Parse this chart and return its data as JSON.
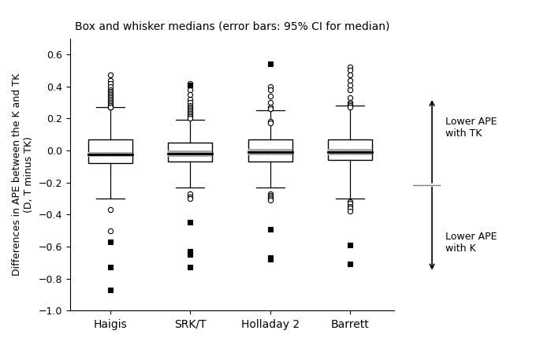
{
  "title": "Box and whisker medians (error bars: 95% CI for median)",
  "ylabel": "Differences in APE between the K and TK\n(D, T minus TK)",
  "xlabel_labels": [
    "Haigis",
    "SRK/T",
    "Holladay 2",
    "Barrett"
  ],
  "ylim": [
    -1.0,
    0.7
  ],
  "yticks": [
    -1.0,
    -0.8,
    -0.6,
    -0.4,
    -0.2,
    0.0,
    0.2,
    0.4,
    0.6
  ],
  "annotation_upper": "Lower APE\nwith TK",
  "annotation_lower": "Lower APE\nwith K",
  "box_data": {
    "Haigis": {
      "median": -0.025,
      "q1": -0.08,
      "q3": 0.07,
      "whisker_low": -0.3,
      "whisker_high": 0.27,
      "ci_low": -0.04,
      "ci_high": -0.01,
      "outliers_circle": [
        0.47,
        0.44,
        0.42,
        0.4,
        0.38,
        0.37,
        0.36,
        0.35,
        0.34,
        0.33,
        0.32,
        0.31,
        0.3,
        0.29,
        0.28,
        0.27,
        0.27,
        -0.37,
        -0.5
      ],
      "outliers_square": [
        -0.57,
        -0.73,
        -0.87
      ]
    },
    "SRK/T": {
      "median": -0.02,
      "q1": -0.07,
      "q3": 0.05,
      "whisker_low": -0.23,
      "whisker_high": 0.19,
      "ci_low": -0.04,
      "ci_high": 0.0,
      "outliers_circle": [
        0.42,
        0.38,
        0.35,
        0.32,
        0.3,
        0.28,
        0.27,
        0.26,
        0.25,
        0.24,
        0.23,
        0.22,
        0.21,
        0.2,
        -0.27,
        -0.29,
        -0.3
      ],
      "outliers_square": [
        0.41,
        -0.45,
        -0.63,
        -0.65,
        -0.73
      ]
    },
    "Holladay 2": {
      "median": -0.01,
      "q1": -0.07,
      "q3": 0.07,
      "whisker_low": -0.23,
      "whisker_high": 0.25,
      "ci_low": -0.03,
      "ci_high": 0.01,
      "outliers_circle": [
        0.4,
        0.38,
        0.34,
        0.3,
        0.27,
        0.26,
        0.18,
        0.17,
        -0.27,
        -0.28,
        -0.29,
        -0.3,
        -0.31
      ],
      "outliers_square": [
        0.54,
        -0.49,
        -0.67,
        -0.68
      ]
    },
    "Barrett": {
      "median": -0.01,
      "q1": -0.06,
      "q3": 0.07,
      "whisker_low": -0.3,
      "whisker_high": 0.28,
      "ci_low": -0.03,
      "ci_high": 0.01,
      "outliers_circle": [
        0.52,
        0.5,
        0.47,
        0.44,
        0.41,
        0.38,
        0.33,
        0.3,
        0.29,
        0.28,
        0.27,
        -0.32,
        -0.33,
        -0.35,
        -0.36,
        -0.38
      ],
      "outliers_square": [
        -0.59,
        -0.71
      ]
    }
  },
  "box_width": 0.55,
  "background_color": "#ffffff"
}
